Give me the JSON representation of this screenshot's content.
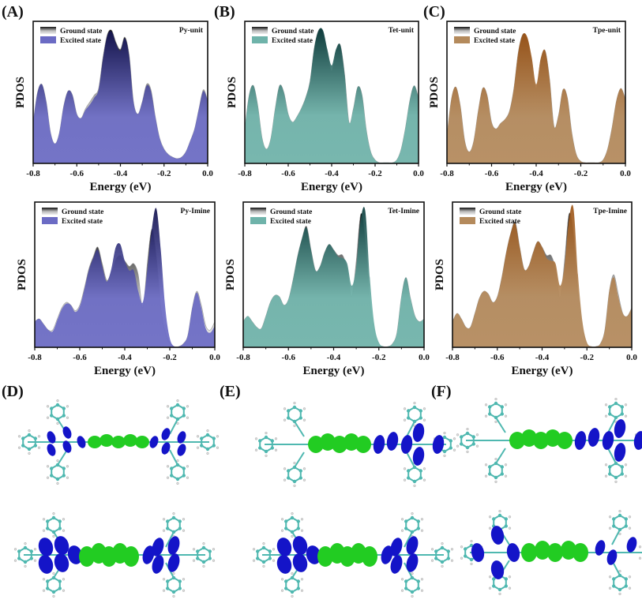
{
  "panel_labels": [
    "(A)",
    "(B)",
    "(C)",
    "(D)",
    "(E)",
    "(F)"
  ],
  "chart_data": [
    {
      "type": "area",
      "panel": "A",
      "tag": "Py-unit",
      "xlabel": "Energy (eV)",
      "ylabel": "PDOS",
      "xlim": [
        -0.8,
        0.0
      ],
      "xticks": [
        "-0.8",
        "-0.6",
        "-0.4",
        "-0.2",
        "0.0"
      ],
      "legend": [
        "Ground state",
        "Excited state"
      ],
      "legend_position": "top-left",
      "fill_color": "#6b6bc4",
      "dark_color": "#14144f",
      "x": [
        -0.8,
        -0.78,
        -0.76,
        -0.74,
        -0.72,
        -0.7,
        -0.68,
        -0.66,
        -0.64,
        -0.62,
        -0.6,
        -0.58,
        -0.56,
        -0.54,
        -0.52,
        -0.5,
        -0.48,
        -0.46,
        -0.44,
        -0.42,
        -0.4,
        -0.38,
        -0.36,
        -0.34,
        -0.32,
        -0.3,
        -0.28,
        -0.26,
        -0.24,
        -0.22,
        -0.2,
        -0.18,
        -0.16,
        -0.14,
        -0.12,
        -0.1,
        -0.08,
        -0.06,
        -0.04,
        -0.02,
        0.0
      ],
      "series": [
        {
          "name": "Ground state",
          "values": [
            0.3,
            0.52,
            0.58,
            0.45,
            0.22,
            0.14,
            0.22,
            0.42,
            0.53,
            0.5,
            0.36,
            0.33,
            0.4,
            0.45,
            0.5,
            0.55,
            0.78,
            0.95,
            0.98,
            0.89,
            0.84,
            0.93,
            0.8,
            0.45,
            0.36,
            0.45,
            0.58,
            0.54,
            0.34,
            0.18,
            0.1,
            0.06,
            0.04,
            0.03,
            0.04,
            0.08,
            0.16,
            0.25,
            0.4,
            0.54,
            0.46
          ]
        },
        {
          "name": "Excited state",
          "values": [
            0.3,
            0.52,
            0.58,
            0.45,
            0.22,
            0.14,
            0.22,
            0.42,
            0.53,
            0.5,
            0.36,
            0.33,
            0.39,
            0.43,
            0.48,
            0.54,
            0.77,
            0.94,
            0.97,
            0.88,
            0.83,
            0.92,
            0.79,
            0.45,
            0.36,
            0.45,
            0.57,
            0.53,
            0.34,
            0.18,
            0.1,
            0.06,
            0.04,
            0.03,
            0.04,
            0.08,
            0.16,
            0.25,
            0.4,
            0.53,
            0.46
          ]
        }
      ]
    },
    {
      "type": "area",
      "panel": "B",
      "tag": "Tet-unit",
      "xlabel": "Energy (eV)",
      "ylabel": "PDOS",
      "xlim": [
        -0.8,
        0.0
      ],
      "xticks": [
        "-0.8",
        "-0.6",
        "-0.4",
        "-0.2",
        "0.0"
      ],
      "legend": [
        "Ground state",
        "Excited state"
      ],
      "legend_position": "top-left",
      "fill_color": "#6fb3aa",
      "dark_color": "#0f3f3f",
      "x": [
        -0.8,
        -0.78,
        -0.76,
        -0.74,
        -0.72,
        -0.7,
        -0.68,
        -0.66,
        -0.64,
        -0.62,
        -0.6,
        -0.58,
        -0.56,
        -0.54,
        -0.52,
        -0.5,
        -0.48,
        -0.46,
        -0.44,
        -0.42,
        -0.4,
        -0.38,
        -0.36,
        -0.34,
        -0.32,
        -0.3,
        -0.28,
        -0.26,
        -0.24,
        -0.22,
        -0.2,
        -0.18,
        -0.16,
        -0.14,
        -0.12,
        -0.1,
        -0.08,
        -0.06,
        -0.04,
        -0.02,
        0.0
      ],
      "series": [
        {
          "name": "Ground state",
          "values": [
            0.25,
            0.5,
            0.57,
            0.42,
            0.18,
            0.1,
            0.18,
            0.4,
            0.57,
            0.52,
            0.36,
            0.3,
            0.34,
            0.4,
            0.48,
            0.6,
            0.85,
            0.98,
            0.97,
            0.82,
            0.68,
            0.83,
            0.87,
            0.65,
            0.3,
            0.4,
            0.56,
            0.5,
            0.24,
            0.08,
            0.02,
            0.0,
            0.0,
            0.0,
            0.0,
            0.02,
            0.1,
            0.26,
            0.46,
            0.57,
            0.48
          ]
        },
        {
          "name": "Excited state",
          "values": [
            0.25,
            0.5,
            0.57,
            0.42,
            0.18,
            0.1,
            0.18,
            0.4,
            0.57,
            0.52,
            0.36,
            0.3,
            0.34,
            0.4,
            0.48,
            0.6,
            0.85,
            0.98,
            0.98,
            0.84,
            0.72,
            0.84,
            0.87,
            0.65,
            0.3,
            0.4,
            0.56,
            0.5,
            0.24,
            0.08,
            0.02,
            0.0,
            0.0,
            0.0,
            0.0,
            0.02,
            0.1,
            0.26,
            0.46,
            0.57,
            0.48
          ]
        }
      ]
    },
    {
      "type": "area",
      "panel": "C",
      "tag": "Tpe-unit",
      "xlabel": "Energy (eV)",
      "ylabel": "PDOS",
      "xlim": [
        -0.8,
        0.0
      ],
      "xticks": [
        "-0.8",
        "-0.6",
        "-0.4",
        "-0.2",
        "0.0"
      ],
      "legend": [
        "Ground state",
        "Excited state"
      ],
      "legend_position": "top-left",
      "fill_color": "#b48a5c",
      "dark_color": "#a0581a",
      "x": [
        -0.8,
        -0.78,
        -0.76,
        -0.74,
        -0.72,
        -0.7,
        -0.68,
        -0.66,
        -0.64,
        -0.62,
        -0.6,
        -0.58,
        -0.56,
        -0.54,
        -0.52,
        -0.5,
        -0.48,
        -0.46,
        -0.44,
        -0.42,
        -0.4,
        -0.38,
        -0.36,
        -0.34,
        -0.32,
        -0.3,
        -0.28,
        -0.26,
        -0.24,
        -0.22,
        -0.2,
        -0.18,
        -0.16,
        -0.14,
        -0.12,
        -0.1,
        -0.08,
        -0.06,
        -0.04,
        -0.02,
        0.0
      ],
      "series": [
        {
          "name": "Ground state",
          "values": [
            0.2,
            0.47,
            0.56,
            0.42,
            0.16,
            0.08,
            0.16,
            0.38,
            0.55,
            0.5,
            0.3,
            0.25,
            0.29,
            0.32,
            0.38,
            0.55,
            0.82,
            0.95,
            0.92,
            0.76,
            0.55,
            0.76,
            0.83,
            0.62,
            0.27,
            0.35,
            0.54,
            0.48,
            0.22,
            0.06,
            0.01,
            0.0,
            0.0,
            0.0,
            0.0,
            0.02,
            0.1,
            0.26,
            0.46,
            0.55,
            0.47
          ]
        },
        {
          "name": "Excited state",
          "values": [
            0.2,
            0.47,
            0.56,
            0.42,
            0.16,
            0.08,
            0.16,
            0.38,
            0.55,
            0.5,
            0.3,
            0.25,
            0.29,
            0.32,
            0.38,
            0.55,
            0.82,
            0.95,
            0.93,
            0.78,
            0.58,
            0.77,
            0.83,
            0.62,
            0.27,
            0.35,
            0.54,
            0.48,
            0.22,
            0.06,
            0.01,
            0.0,
            0.0,
            0.0,
            0.0,
            0.02,
            0.1,
            0.26,
            0.46,
            0.55,
            0.47
          ]
        }
      ]
    },
    {
      "type": "area",
      "panel": "A-bottom",
      "tag": "Py-Imine",
      "xlabel": "Energy (eV)",
      "ylabel": "PDOS",
      "xlim": [
        -0.8,
        0.0
      ],
      "xticks": [
        "-0.8",
        "-0.6",
        "-0.4",
        "-0.2",
        "0.0"
      ],
      "legend": [
        "Ground state",
        "Excited state"
      ],
      "legend_position": "top-left",
      "fill_color": "#6b6bc4",
      "dark_color": "#14144f",
      "x": [
        -0.8,
        -0.78,
        -0.76,
        -0.74,
        -0.72,
        -0.7,
        -0.68,
        -0.66,
        -0.64,
        -0.62,
        -0.6,
        -0.58,
        -0.56,
        -0.54,
        -0.52,
        -0.5,
        -0.48,
        -0.46,
        -0.44,
        -0.42,
        -0.4,
        -0.38,
        -0.36,
        -0.34,
        -0.32,
        -0.3,
        -0.28,
        -0.26,
        -0.24,
        -0.22,
        -0.2,
        -0.18,
        -0.16,
        -0.14,
        -0.12,
        -0.1,
        -0.08,
        -0.06,
        -0.04,
        -0.02,
        0.0
      ],
      "series": [
        {
          "name": "Ground state",
          "values": [
            0.18,
            0.2,
            0.16,
            0.12,
            0.12,
            0.2,
            0.28,
            0.32,
            0.3,
            0.26,
            0.3,
            0.42,
            0.56,
            0.65,
            0.72,
            0.6,
            0.48,
            0.54,
            0.63,
            0.66,
            0.62,
            0.58,
            0.6,
            0.52,
            0.28,
            0.6,
            0.85,
            0.66,
            0.28,
            0.1,
            0.02,
            0.0,
            0.0,
            0.02,
            0.08,
            0.28,
            0.4,
            0.3,
            0.15,
            0.12,
            0.18
          ]
        },
        {
          "name": "Excited state",
          "values": [
            0.18,
            0.2,
            0.16,
            0.12,
            0.11,
            0.19,
            0.27,
            0.31,
            0.3,
            0.25,
            0.29,
            0.41,
            0.55,
            0.64,
            0.7,
            0.58,
            0.47,
            0.56,
            0.72,
            0.74,
            0.62,
            0.55,
            0.55,
            0.4,
            0.32,
            0.55,
            0.85,
            1.0,
            0.7,
            0.28,
            0.06,
            0.0,
            0.0,
            0.02,
            0.08,
            0.28,
            0.39,
            0.28,
            0.13,
            0.1,
            0.15
          ]
        }
      ]
    },
    {
      "type": "area",
      "panel": "B-bottom",
      "tag": "Tet-Imine",
      "xlabel": "Energy (eV)",
      "ylabel": "PDOS",
      "xlim": [
        -0.8,
        0.0
      ],
      "xticks": [
        "-0.8",
        "-0.6",
        "-0.4",
        "-0.2",
        "0.0"
      ],
      "legend": [
        "Ground state",
        "Excited state"
      ],
      "legend_position": "top-left",
      "fill_color": "#6fb3aa",
      "dark_color": "#0f3f3f",
      "x": [
        -0.8,
        -0.78,
        -0.76,
        -0.74,
        -0.72,
        -0.7,
        -0.68,
        -0.66,
        -0.64,
        -0.62,
        -0.6,
        -0.58,
        -0.56,
        -0.54,
        -0.52,
        -0.5,
        -0.48,
        -0.46,
        -0.44,
        -0.42,
        -0.4,
        -0.38,
        -0.36,
        -0.34,
        -0.32,
        -0.3,
        -0.28,
        -0.26,
        -0.24,
        -0.22,
        -0.2,
        -0.18,
        -0.16,
        -0.14,
        -0.12,
        -0.1,
        -0.08,
        -0.06,
        -0.04,
        -0.02,
        0.0
      ],
      "series": [
        {
          "name": "Ground state",
          "values": [
            0.18,
            0.22,
            0.18,
            0.14,
            0.13,
            0.22,
            0.32,
            0.37,
            0.36,
            0.3,
            0.34,
            0.48,
            0.65,
            0.78,
            0.87,
            0.7,
            0.55,
            0.58,
            0.68,
            0.74,
            0.7,
            0.66,
            0.66,
            0.56,
            0.36,
            0.62,
            0.96,
            0.78,
            0.34,
            0.12,
            0.02,
            0.0,
            0.0,
            0.02,
            0.1,
            0.36,
            0.5,
            0.35,
            0.22,
            0.18,
            0.2
          ]
        },
        {
          "name": "Excited state",
          "values": [
            0.18,
            0.22,
            0.18,
            0.14,
            0.13,
            0.22,
            0.32,
            0.37,
            0.36,
            0.3,
            0.34,
            0.48,
            0.65,
            0.78,
            0.86,
            0.7,
            0.55,
            0.58,
            0.68,
            0.74,
            0.7,
            0.65,
            0.64,
            0.6,
            0.44,
            0.58,
            0.92,
            0.98,
            0.5,
            0.16,
            0.03,
            0.0,
            0.0,
            0.02,
            0.1,
            0.36,
            0.5,
            0.35,
            0.22,
            0.18,
            0.2
          ]
        }
      ]
    },
    {
      "type": "area",
      "panel": "C-bottom",
      "tag": "Tpe-Imine",
      "xlabel": "Energy (eV)",
      "ylabel": "PDOS",
      "xlim": [
        -0.8,
        0.0
      ],
      "xticks": [
        "-0.8",
        "-0.6",
        "-0.4",
        "-0.2",
        "0.0"
      ],
      "legend": [
        "Ground state",
        "Excited state"
      ],
      "legend_position": "top-left",
      "fill_color": "#b48a5c",
      "dark_color": "#a0581a",
      "x": [
        -0.8,
        -0.78,
        -0.76,
        -0.74,
        -0.72,
        -0.7,
        -0.68,
        -0.66,
        -0.64,
        -0.62,
        -0.6,
        -0.58,
        -0.56,
        -0.54,
        -0.52,
        -0.5,
        -0.48,
        -0.46,
        -0.44,
        -0.42,
        -0.4,
        -0.38,
        -0.36,
        -0.34,
        -0.32,
        -0.3,
        -0.28,
        -0.26,
        -0.24,
        -0.22,
        -0.2,
        -0.18,
        -0.16,
        -0.14,
        -0.12,
        -0.1,
        -0.08,
        -0.06,
        -0.04,
        -0.02,
        0.0
      ],
      "series": [
        {
          "name": "Ground state",
          "values": [
            0.18,
            0.24,
            0.2,
            0.14,
            0.14,
            0.24,
            0.35,
            0.4,
            0.38,
            0.32,
            0.36,
            0.5,
            0.68,
            0.82,
            0.9,
            0.72,
            0.56,
            0.58,
            0.68,
            0.76,
            0.72,
            0.66,
            0.66,
            0.56,
            0.35,
            0.62,
            0.96,
            0.82,
            0.38,
            0.14,
            0.02,
            0.0,
            0.0,
            0.02,
            0.12,
            0.4,
            0.52,
            0.38,
            0.24,
            0.22,
            0.28
          ]
        },
        {
          "name": "Excited state",
          "values": [
            0.18,
            0.24,
            0.2,
            0.14,
            0.14,
            0.24,
            0.35,
            0.4,
            0.38,
            0.32,
            0.36,
            0.5,
            0.68,
            0.82,
            0.89,
            0.72,
            0.56,
            0.58,
            0.68,
            0.76,
            0.72,
            0.64,
            0.62,
            0.6,
            0.44,
            0.58,
            0.92,
            1.0,
            0.52,
            0.18,
            0.03,
            0.0,
            0.0,
            0.02,
            0.12,
            0.4,
            0.5,
            0.36,
            0.24,
            0.22,
            0.28
          ]
        }
      ]
    }
  ],
  "molecule_panels": [
    {
      "panel": "D",
      "description": "Py-based molecular orbital isosurfaces (top and bottom views)"
    },
    {
      "panel": "E",
      "description": "Tet-based molecular orbital isosurfaces (top and bottom views)"
    },
    {
      "panel": "F",
      "description": "Tpe-based molecular orbital isosurfaces (top and bottom views)"
    }
  ],
  "colors": {
    "orbital_positive": "#22cc22",
    "orbital_negative": "#1414c8",
    "atom_carbon": "#4fb8b0",
    "atom_hydrogen": "#e8e8e8"
  }
}
